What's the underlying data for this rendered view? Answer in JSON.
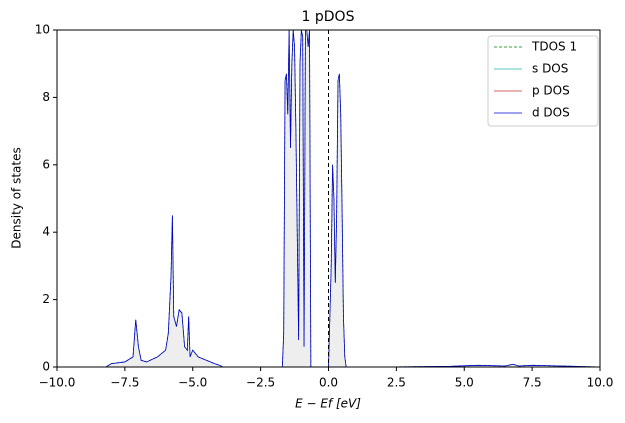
{
  "chart_data": {
    "type": "line",
    "title": "1 pDOS",
    "x_label": "E − Ef [eV]",
    "y_label": "Density of states",
    "xlim": [
      -10,
      10
    ],
    "ylim": [
      0,
      10
    ],
    "xticks": [
      {
        "value": -10,
        "label": "−10.0"
      },
      {
        "value": -7.5,
        "label": "−7.5"
      },
      {
        "value": -5,
        "label": "−5.0"
      },
      {
        "value": -2.5,
        "label": "−2.5"
      },
      {
        "value": 0,
        "label": "0.0"
      },
      {
        "value": 2.5,
        "label": "2.5"
      },
      {
        "value": 5,
        "label": "5.0"
      },
      {
        "value": 7.5,
        "label": "7.5"
      },
      {
        "value": 10,
        "label": "10.0"
      }
    ],
    "yticks": [
      0,
      2,
      4,
      6,
      8,
      10
    ],
    "fermi_line": 0,
    "legend": "upper right",
    "x": [
      -10,
      -8.2,
      -8.0,
      -7.5,
      -7.2,
      -7.1,
      -7.0,
      -6.9,
      -6.7,
      -6.3,
      -6.0,
      -5.9,
      -5.8,
      -5.75,
      -5.7,
      -5.6,
      -5.5,
      -5.4,
      -5.3,
      -5.2,
      -5.15,
      -5.1,
      -5.0,
      -4.8,
      -4.5,
      -4.2,
      -4.0,
      -3.9,
      -1.7,
      -1.65,
      -1.6,
      -1.55,
      -1.5,
      -1.45,
      -1.4,
      -1.35,
      -1.3,
      -1.25,
      -1.2,
      -1.1,
      -1.05,
      -1.0,
      -0.95,
      -0.9,
      -0.85,
      -0.8,
      -0.75,
      -0.7,
      -0.65,
      0.0,
      0.05,
      0.1,
      0.15,
      0.2,
      0.25,
      0.3,
      0.35,
      0.4,
      0.45,
      0.5,
      0.55,
      0.6,
      0.65,
      2.0,
      4.5,
      5.5,
      6.5,
      6.8,
      7.0,
      7.5,
      8.0,
      9.0,
      10
    ],
    "series": [
      {
        "name": "TDOS 1",
        "color": "#008000",
        "dash": true,
        "fill": "#eeeeee",
        "values": [
          0,
          0,
          0.1,
          0.15,
          0.3,
          1.4,
          0.6,
          0.2,
          0.15,
          0.3,
          0.5,
          1.0,
          2.7,
          4.5,
          1.5,
          1.2,
          1.7,
          1.6,
          0.6,
          0.5,
          1.5,
          0.3,
          0.5,
          0.3,
          0.2,
          0.1,
          0.05,
          0,
          0,
          1.0,
          8.5,
          8.7,
          7.5,
          10,
          6.5,
          9,
          10,
          9.5,
          7,
          0.8,
          9,
          10,
          9.8,
          0.6,
          10,
          10,
          9.5,
          10,
          0,
          0,
          1.5,
          3,
          6,
          5,
          2.5,
          4.5,
          8.5,
          8.7,
          7.5,
          4.7,
          1.5,
          0.3,
          0,
          0,
          0.02,
          0.05,
          0.03,
          0.08,
          0.03,
          0.05,
          0.04,
          0.02,
          0
        ]
      },
      {
        "name": "s DOS",
        "color": "#20b2aa",
        "values": [
          0,
          0,
          0,
          0,
          0,
          0,
          0,
          0,
          0,
          0,
          0,
          0,
          0,
          0,
          0,
          0,
          0,
          0,
          0,
          0,
          0,
          0,
          0,
          0,
          0,
          0,
          0,
          0,
          0,
          0,
          0,
          0,
          0,
          0,
          0,
          0,
          0,
          0,
          0,
          0,
          0,
          0,
          0,
          0,
          0,
          0,
          0,
          0,
          0,
          0,
          0,
          0,
          0,
          0,
          0,
          0,
          0,
          0,
          0,
          0,
          0,
          0,
          0,
          0,
          0,
          0,
          0,
          0,
          0,
          0,
          0,
          0,
          0
        ]
      },
      {
        "name": "p DOS",
        "color": "#cd3333",
        "values": [
          0,
          0,
          0,
          0,
          0,
          0,
          0,
          0,
          0,
          0,
          0,
          0,
          0,
          0,
          0,
          0,
          0,
          0,
          0,
          0,
          0,
          0,
          0,
          0,
          0,
          0,
          0,
          0,
          0,
          0,
          0,
          0,
          0,
          0,
          0,
          0,
          0,
          0,
          0,
          0,
          0,
          0,
          0,
          0,
          0,
          0,
          0,
          0,
          0,
          0,
          0,
          0,
          0,
          0,
          0,
          0,
          0,
          0,
          0,
          0,
          0,
          0,
          0,
          0,
          0,
          0,
          0,
          0,
          0,
          0,
          0,
          0,
          0
        ]
      },
      {
        "name": "d DOS",
        "color": "#0000cd",
        "values": [
          0,
          0,
          0.1,
          0.15,
          0.3,
          1.4,
          0.6,
          0.2,
          0.15,
          0.3,
          0.5,
          1.0,
          2.7,
          4.5,
          1.5,
          1.2,
          1.7,
          1.6,
          0.6,
          0.5,
          1.5,
          0.3,
          0.5,
          0.3,
          0.2,
          0.1,
          0.05,
          0,
          0,
          1.0,
          8.5,
          8.7,
          7.5,
          10,
          6.5,
          9,
          10,
          9.5,
          7,
          0.8,
          9,
          10,
          9.8,
          0.6,
          10,
          10,
          9.5,
          10,
          0,
          0,
          1.5,
          3,
          6,
          5,
          2.5,
          4.5,
          8.5,
          8.7,
          7.5,
          4.7,
          1.5,
          0.3,
          0,
          0,
          0.02,
          0.05,
          0.03,
          0.08,
          0.03,
          0.05,
          0.04,
          0.02,
          0
        ]
      }
    ]
  }
}
